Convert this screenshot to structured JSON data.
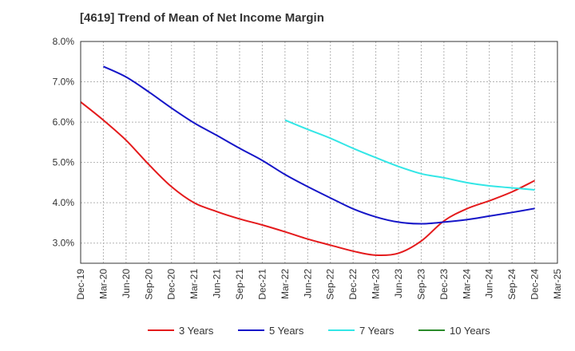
{
  "chart_data": {
    "type": "line",
    "title": "[4619]  Trend of Mean of Net Income Margin",
    "xlabel": "",
    "ylabel": "",
    "x": [
      "Dec-19",
      "Mar-20",
      "Jun-20",
      "Sep-20",
      "Dec-20",
      "Mar-21",
      "Jun-21",
      "Sep-21",
      "Dec-21",
      "Mar-22",
      "Jun-22",
      "Sep-22",
      "Dec-22",
      "Mar-23",
      "Jun-23",
      "Sep-23",
      "Dec-23",
      "Mar-24",
      "Jun-24",
      "Sep-24",
      "Dec-24",
      "Mar-25"
    ],
    "yticks": [
      "3.0%",
      "4.0%",
      "5.0%",
      "6.0%",
      "7.0%",
      "8.0%"
    ],
    "ylim": [
      2.5,
      8.0
    ],
    "grid": true,
    "legend_position": "bottom",
    "series": [
      {
        "name": "3 Years",
        "color": "#e41a1c",
        "values": [
          6.5,
          6.05,
          5.55,
          4.95,
          4.4,
          4.0,
          3.78,
          3.6,
          3.45,
          3.28,
          3.1,
          2.95,
          2.8,
          2.7,
          2.75,
          3.05,
          3.55,
          3.85,
          4.05,
          4.27,
          4.55,
          null
        ]
      },
      {
        "name": "5 Years",
        "color": "#1515c8",
        "values": [
          null,
          7.38,
          7.12,
          6.75,
          6.35,
          5.98,
          5.67,
          5.35,
          5.05,
          4.7,
          4.4,
          4.12,
          3.85,
          3.65,
          3.52,
          3.48,
          3.52,
          3.58,
          3.67,
          3.76,
          3.86,
          null
        ]
      },
      {
        "name": "7 Years",
        "color": "#33e6e6",
        "values": [
          null,
          null,
          null,
          null,
          null,
          null,
          null,
          null,
          null,
          6.05,
          5.82,
          5.6,
          5.35,
          5.12,
          4.9,
          4.72,
          4.62,
          4.5,
          4.42,
          4.37,
          4.32,
          null
        ]
      },
      {
        "name": "10 Years",
        "color": "#2a8a2a",
        "values": [
          null,
          null,
          null,
          null,
          null,
          null,
          null,
          null,
          null,
          null,
          null,
          null,
          null,
          null,
          null,
          null,
          null,
          null,
          null,
          null,
          null,
          null
        ]
      }
    ]
  }
}
